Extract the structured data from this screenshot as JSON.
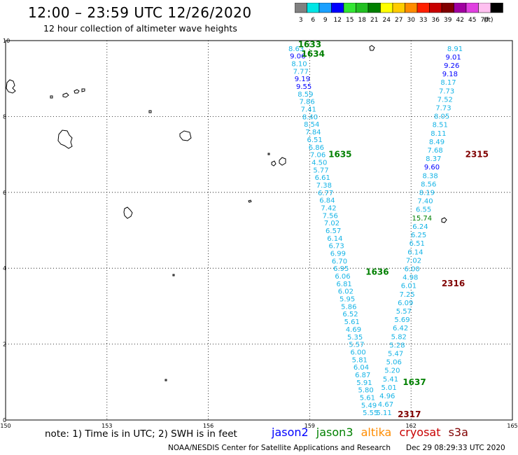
{
  "header": {
    "title": "12:00 – 23:59 UTC 12/26/2020",
    "subtitle": "12 hour collection of altimeter wave heights"
  },
  "colorbar": {
    "unit": "(ft)",
    "bins": [
      {
        "label": "3",
        "color": "#808080"
      },
      {
        "label": "6",
        "color": "#00e5e5"
      },
      {
        "label": "9",
        "color": "#1aa0ff"
      },
      {
        "label": "12",
        "color": "#0000ff"
      },
      {
        "label": "15",
        "color": "#33e633"
      },
      {
        "label": "18",
        "color": "#22c022"
      },
      {
        "label": "21",
        "color": "#008000"
      },
      {
        "label": "24",
        "color": "#ffff00"
      },
      {
        "label": "27",
        "color": "#ffcc00"
      },
      {
        "label": "30",
        "color": "#ff8c00"
      },
      {
        "label": "33",
        "color": "#ff2000"
      },
      {
        "label": "36",
        "color": "#c80000"
      },
      {
        "label": "39",
        "color": "#800000"
      },
      {
        "label": "42",
        "color": "#a000a0"
      },
      {
        "label": "45",
        "color": "#e040e0"
      },
      {
        "label": "70",
        "color": "#ffc0f0"
      },
      {
        "label": "",
        "color": "#000000"
      }
    ]
  },
  "axes": {
    "x_ticks": [
      "150",
      "153",
      "156",
      "159",
      "162",
      "165"
    ],
    "y_ticks": [
      "10",
      "8",
      "6",
      "4",
      "2",
      "0"
    ]
  },
  "map_data": {
    "lon_range": [
      150,
      165
    ],
    "lat_range": [
      0,
      10
    ],
    "colors": {
      "cyan": "#16b4e6",
      "blue": "#0000ff",
      "green": "#008000",
      "darkred": "#800000"
    },
    "track_a": {
      "lon_start": 158.6,
      "lat_start": 9.8,
      "lon_end": 160.8,
      "lat_end": 0.2,
      "values": [
        "8.63",
        "9.06",
        "8.10",
        "7.77",
        "9.19",
        "9.55",
        "8.59",
        "7.86",
        "7.41",
        "8.40",
        "8.54",
        "7.84",
        "6.51",
        "6.86",
        "7.06",
        "4.50",
        "5.77",
        "6.61",
        "7.38",
        "6.77",
        "6.84",
        "7.42",
        "7.56",
        "7.02",
        "6.57",
        "6.14",
        "6.73",
        "6.99",
        "6.70",
        "6.95",
        "6.06",
        "6.81",
        "6.02",
        "5.95",
        "5.86",
        "6.52",
        "5.61",
        "4.69",
        "5.35",
        "5.57",
        "6.00",
        "5.81",
        "6.04",
        "6.87",
        "5.91",
        "5.80",
        "5.61",
        "5.49",
        "5.55"
      ],
      "value_colors": [
        "cyan",
        "blue",
        "cyan",
        "cyan",
        "blue",
        "blue",
        "cyan",
        "cyan",
        "cyan",
        "cyan",
        "cyan",
        "cyan",
        "cyan",
        "cyan",
        "cyan",
        "cyan",
        "cyan",
        "cyan",
        "cyan",
        "cyan",
        "cyan",
        "cyan",
        "cyan",
        "cyan",
        "cyan",
        "cyan",
        "cyan",
        "cyan",
        "cyan",
        "cyan",
        "cyan",
        "cyan",
        "cyan",
        "cyan",
        "cyan",
        "cyan",
        "cyan",
        "cyan",
        "cyan",
        "cyan",
        "cyan",
        "cyan",
        "cyan",
        "cyan",
        "cyan",
        "cyan",
        "cyan",
        "cyan",
        "cyan"
      ],
      "times": [
        {
          "label": "1633",
          "lon": 159.0,
          "lat": 9.9
        },
        {
          "label": "1634",
          "lon": 159.1,
          "lat": 9.65
        },
        {
          "label": "1635",
          "lon": 159.9,
          "lat": 7.0
        },
        {
          "label": "1636",
          "lon": 161.0,
          "lat": 3.9
        },
        {
          "label": "1637",
          "lon": 162.1,
          "lat": 1.0
        }
      ]
    },
    "track_b": {
      "lon_start": 163.3,
      "lat_start": 9.8,
      "lon_end": 161.2,
      "lat_end": 0.2,
      "values": [
        "8.91",
        "9.01",
        "9.26",
        "9.18",
        "8.17",
        "7.73",
        "7.52",
        "7.73",
        "8.05",
        "8.51",
        "8.11",
        "8.49",
        "7.68",
        "8.37",
        "9.60",
        "8.38",
        "8.56",
        "8.19",
        "7.40",
        "6.55",
        "15.74",
        "6.24",
        "6.25",
        "6.51",
        "6.14",
        "7.02",
        "6.00",
        "4.98",
        "6.01",
        "7.25",
        "6.09",
        "5.57",
        "5.69",
        "6.42",
        "5.82",
        "5.28",
        "5.47",
        "5.06",
        "5.20",
        "5.41",
        "5.01",
        "4.96",
        "4.67",
        "5.11"
      ],
      "value_colors": [
        "cyan",
        "blue",
        "blue",
        "blue",
        "cyan",
        "cyan",
        "cyan",
        "cyan",
        "cyan",
        "cyan",
        "cyan",
        "cyan",
        "cyan",
        "cyan",
        "blue",
        "cyan",
        "cyan",
        "cyan",
        "cyan",
        "cyan",
        "green",
        "cyan",
        "cyan",
        "cyan",
        "cyan",
        "cyan",
        "cyan",
        "cyan",
        "cyan",
        "cyan",
        "cyan",
        "cyan",
        "cyan",
        "cyan",
        "cyan",
        "cyan",
        "cyan",
        "cyan",
        "cyan",
        "cyan",
        "cyan",
        "cyan",
        "cyan",
        "cyan"
      ],
      "times": [
        {
          "label": "2315",
          "lon": 163.95,
          "lat": 7.0
        },
        {
          "label": "2316",
          "lon": 163.25,
          "lat": 3.6
        },
        {
          "label": "2317",
          "lon": 161.95,
          "lat": 0.15
        }
      ]
    }
  },
  "footer": {
    "note": "note: 1) Time is in UTC; 2) SWH is in feet",
    "legend": [
      {
        "label": "jason2",
        "color": "#0000ff"
      },
      {
        "label": "jason3",
        "color": "#008000"
      },
      {
        "label": "altika",
        "color": "#ff8c00"
      },
      {
        "label": "cryosat",
        "color": "#c80000"
      },
      {
        "label": "s3a",
        "color": "#800000"
      }
    ],
    "credit": "NOAA/NESDIS Center for Satellite Applications and Research",
    "created": "Dec 29 08:29:33 UTC 2020"
  }
}
